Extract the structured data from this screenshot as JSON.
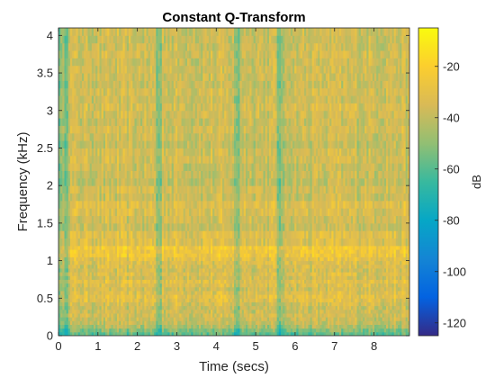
{
  "chart_data": {
    "type": "heatmap",
    "title": "Constant Q-Transform",
    "xlabel": "Time (secs)",
    "ylabel": "Frequency (kHz)",
    "xlim": [
      0,
      8.9
    ],
    "ylim": [
      0,
      4.1
    ],
    "x_ticks": [
      0,
      1,
      2,
      3,
      4,
      5,
      6,
      7,
      8
    ],
    "x_tick_labels": [
      "0",
      "1",
      "2",
      "3",
      "4",
      "5",
      "6",
      "7",
      "8"
    ],
    "y_ticks": [
      0,
      0.5,
      1,
      1.5,
      2,
      2.5,
      3,
      3.5,
      4
    ],
    "y_tick_labels": [
      "0",
      "0.5",
      "1",
      "1.5",
      "2",
      "2.5",
      "3",
      "3.5",
      "4"
    ],
    "colorbar": {
      "label": "dB",
      "range": [
        -125,
        -5
      ],
      "ticks": [
        -20,
        -40,
        -60,
        -80,
        -100,
        -120
      ],
      "tick_labels": [
        "-20",
        "-40",
        "-60",
        "-80",
        "-100",
        "-120"
      ],
      "colormap": "parula"
    },
    "frequency_bands_kHz": [
      0.05,
      0.1,
      0.15,
      0.2,
      0.25,
      0.3,
      0.35,
      0.4,
      0.45,
      0.5,
      0.55,
      0.6,
      0.65,
      0.7,
      0.75,
      0.8,
      0.85,
      0.9,
      0.95,
      1.0,
      1.05,
      1.1,
      1.15,
      1.2,
      1.3,
      1.4,
      1.5,
      1.6,
      1.7,
      1.8,
      1.9,
      2.0,
      2.1,
      2.2,
      2.3,
      2.4,
      2.5,
      2.6,
      2.7,
      2.8,
      2.9,
      3.0,
      3.1,
      3.2,
      3.3,
      3.4,
      3.5,
      3.6,
      3.7,
      3.8,
      3.9,
      4.0,
      4.1
    ],
    "band_level_dB": [
      -58,
      -52,
      -44,
      -40,
      -38,
      -36,
      -37,
      -38,
      -35,
      -32,
      -30,
      -33,
      -36,
      -34,
      -31,
      -35,
      -33,
      -36,
      -34,
      -33,
      -30,
      -26,
      -26,
      -24,
      -33,
      -32,
      -38,
      -36,
      -34,
      -32,
      -38,
      -36,
      -40,
      -38,
      -38,
      -36,
      -37,
      -40,
      -38,
      -36,
      -38,
      -36,
      -35,
      -37,
      -36,
      -38,
      -37,
      -36,
      -38,
      -36,
      -37,
      -38,
      -37
    ],
    "quiet_time_segments_secs": [
      [
        0,
        0.25
      ],
      [
        2.45,
        2.6
      ],
      [
        4.45,
        4.6
      ],
      [
        5.55,
        5.75
      ]
    ]
  }
}
